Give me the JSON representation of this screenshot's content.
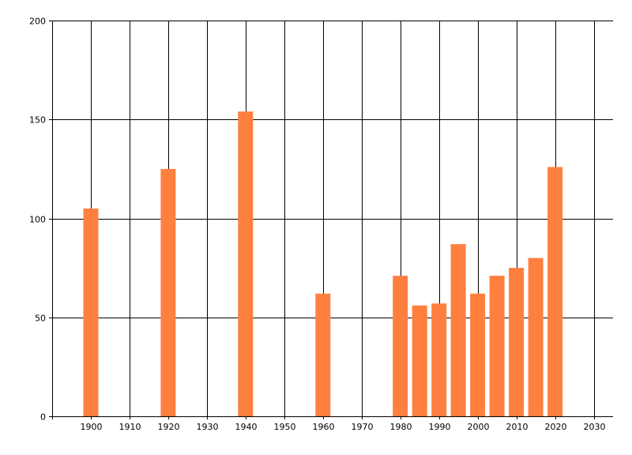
{
  "chart_data": {
    "type": "bar",
    "title": "",
    "xlabel": "",
    "ylabel": "",
    "x": [
      1900,
      1920,
      1940,
      1960,
      1980,
      1985,
      1990,
      1995,
      2000,
      2005,
      2010,
      2015,
      2020
    ],
    "values": [
      105,
      125,
      154,
      62,
      71,
      56,
      57,
      87,
      62,
      71,
      75,
      80,
      126
    ],
    "xlim": [
      1890,
      2035
    ],
    "ylim": [
      0,
      200
    ],
    "x_ticks": [
      1900,
      1910,
      1920,
      1930,
      1940,
      1950,
      1960,
      1970,
      1980,
      1990,
      2000,
      2010,
      2020,
      2030
    ],
    "y_ticks": [
      0,
      50,
      100,
      150,
      200
    ],
    "grid": true,
    "bar_color": "#ff7f3f",
    "grid_color": "#000000"
  }
}
